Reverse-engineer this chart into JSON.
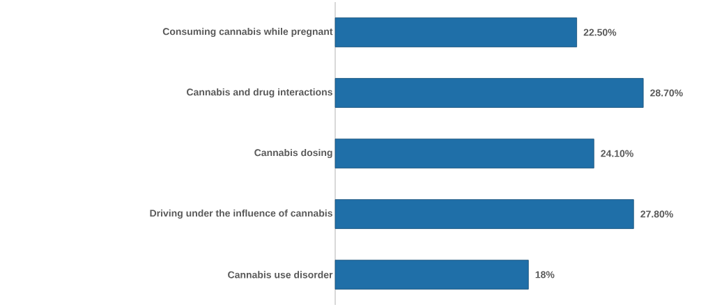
{
  "chart_data": {
    "type": "bar",
    "orientation": "horizontal",
    "categories": [
      "Consuming cannabis while pregnant",
      "Cannabis and drug interactions",
      "Cannabis dosing",
      "Driving under the influence of cannabis",
      "Cannabis use disorder"
    ],
    "values": [
      22.5,
      28.7,
      24.1,
      27.8,
      18
    ],
    "value_labels": [
      "22.50%",
      "28.70%",
      "24.10%",
      "27.80%",
      "18%"
    ],
    "color": "#1f6fa8"
  }
}
